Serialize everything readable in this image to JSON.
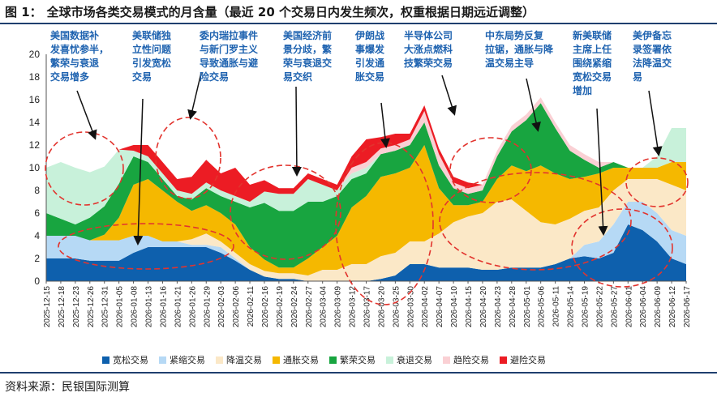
{
  "header": {
    "figure_label": "图 1：",
    "title": "全球市场各类交易模式的月含量（最近 20 个交易日内发生频次，权重根据日期远近调整）"
  },
  "source": "资料来源：民银国际测算",
  "colors": {
    "宽松交易": "#0e60ad",
    "紧缩交易": "#b6d9f5",
    "降温交易": "#fbe8c7",
    "通胀交易": "#f5b800",
    "繁荣交易": "#18a540",
    "衰退交易": "#c8f1da",
    "趋险交易": "#fad0d4",
    "避险交易": "#ec1c24",
    "annotation": "#1f63b0",
    "circle": "#e2342e"
  },
  "annotations": [
    "美国数据补\n发喜忧参半，\n繁荣与衰退\n交易增多",
    "美联储独\n立性问题\n引发宽松\n交易",
    "委内瑞拉事件\n与新门罗主义\n导致通胀与避\n险交易",
    "美国经济前\n景分歧，繁\n荣与衰退交\n易交织",
    "伊朗战\n事爆发\n引发通\n胀交易",
    "半导体公司\n大涨点燃科\n技繁荣交易",
    "中东局势反复\n拉锯，通胀与降\n温交易主导",
    "新美联储\n主席上任\n围绕紧缩\n宽松交易\n增加",
    "美伊备忘\n录签署依\n法降温交\n易"
  ],
  "chart_data": {
    "type": "area",
    "stacked": true,
    "title": "",
    "xlabel": "",
    "ylabel": "",
    "ylim": [
      0,
      20
    ],
    "yticks": [
      0,
      2,
      4,
      6,
      8,
      10,
      12,
      14,
      16,
      18,
      20
    ],
    "grid": false,
    "legend_position": "bottom",
    "x_tick_labels": [
      "2025-12-15",
      "2025-12-18",
      "2025-12-23",
      "2025-12-26",
      "2025-12-31",
      "2026-01-05",
      "2026-01-08",
      "2026-01-13",
      "2026-01-16",
      "2026-01-21",
      "2026-01-26",
      "2026-01-29",
      "2026-02-03",
      "2026-02-06",
      "2026-02-11",
      "2026-02-16",
      "2026-02-19",
      "2026-02-24",
      "2026-02-27",
      "2026-03-04",
      "2026-03-09",
      "2026-03-12",
      "2026-03-17",
      "2026-03-20",
      "2026-03-25",
      "2026-03-30",
      "2026-04-02",
      "2026-04-07",
      "2026-04-10",
      "2026-04-15",
      "2026-04-20",
      "2026-04-23",
      "2026-04-28",
      "2026-05-01",
      "2026-05-06",
      "2026-05-11",
      "2026-05-14",
      "2026-05-19",
      "2026-05-22",
      "2026-05-27",
      "2026-06-01",
      "2026-06-04",
      "2026-06-09",
      "2026-06-12",
      "2026-06-17"
    ],
    "series": [
      {
        "name": "宽松交易",
        "values": [
          2,
          2,
          2,
          1.8,
          1.8,
          1.8,
          2.5,
          3,
          3,
          3,
          3,
          3,
          2.5,
          1.8,
          1,
          0.4,
          0.2,
          0.2,
          0,
          0,
          0,
          0,
          0,
          0.2,
          0.5,
          1.5,
          1.5,
          1.2,
          1.2,
          1.2,
          1,
          1,
          1.2,
          1.2,
          1.2,
          1.5,
          2,
          2.2,
          2,
          2.5,
          5,
          4.5,
          3.5,
          2,
          1.5
        ]
      },
      {
        "name": "紧缩交易",
        "values": [
          2,
          2,
          2,
          1.8,
          1.8,
          1.8,
          1.5,
          1,
          0.5,
          0.5,
          0.2,
          0.2,
          0.5,
          0.2,
          0,
          0,
          0,
          0,
          0,
          0,
          0,
          0,
          0,
          0,
          0,
          0,
          0,
          0,
          0,
          0,
          0,
          0,
          0,
          0,
          0,
          0,
          0,
          1,
          1.5,
          2.5,
          2,
          2.5,
          2.5,
          2.5,
          2.5
        ]
      },
      {
        "name": "降温交易",
        "values": [
          0,
          0,
          0,
          0,
          0,
          0,
          0,
          0,
          0,
          0,
          0.5,
          1,
          0.5,
          0.5,
          0.5,
          0.5,
          0.5,
          0.5,
          0.5,
          1,
          1,
          1.5,
          1.5,
          2,
          2,
          2,
          2,
          3,
          4,
          4.5,
          5,
          6,
          6,
          5,
          4,
          3.5,
          3.5,
          3,
          3,
          3,
          2,
          2,
          3,
          4,
          4
        ]
      },
      {
        "name": "通胀交易",
        "values": [
          0,
          0,
          0,
          0,
          0.5,
          2,
          4.5,
          5,
          4.5,
          3.5,
          2.5,
          2.5,
          2.5,
          2.5,
          1.5,
          1,
          0.5,
          0.5,
          1.5,
          2,
          3,
          5,
          6,
          7,
          7,
          6.5,
          8.5,
          4,
          1.5,
          1,
          1,
          2,
          3,
          3.5,
          5,
          4.5,
          3.5,
          3,
          3,
          2,
          1,
          1,
          1,
          2,
          2.5
        ]
      },
      {
        "name": "繁荣交易",
        "values": [
          2,
          1.5,
          1,
          2,
          2.5,
          3,
          2.5,
          1.5,
          1,
          0.5,
          1,
          1.5,
          1.5,
          2,
          3.5,
          5,
          5,
          5,
          5,
          4,
          3.5,
          2.5,
          2,
          2,
          2,
          2,
          2,
          2,
          1.5,
          1,
          1,
          2,
          3,
          4.5,
          5.5,
          4,
          2.5,
          1.5,
          0.5,
          0.5,
          0,
          0,
          0,
          0,
          0
        ]
      },
      {
        "name": "衰退交易",
        "values": [
          4,
          5,
          5,
          4,
          3.5,
          3,
          0.5,
          0.5,
          0.5,
          0.5,
          0.5,
          0.5,
          0.5,
          0.5,
          0.5,
          1,
          1.5,
          1.5,
          2,
          1.5,
          0.5,
          0.5,
          0.5,
          0,
          0,
          0,
          0,
          0,
          0,
          0,
          0,
          0,
          0,
          0,
          0,
          0,
          0,
          0,
          0,
          0,
          0,
          0,
          1,
          3,
          3
        ]
      },
      {
        "name": "趋险交易",
        "values": [
          0,
          0,
          0,
          0,
          0,
          0,
          0,
          0,
          0,
          0,
          0,
          0,
          0,
          0,
          0,
          0,
          0,
          0,
          0,
          0,
          0,
          0.5,
          0.5,
          0.5,
          0.5,
          0.5,
          1,
          1,
          0.5,
          0.5,
          0.5,
          0.5,
          0.5,
          0.5,
          0.5,
          0.5,
          0.5,
          0.5,
          0.5,
          0,
          0,
          0,
          0,
          0,
          0
        ]
      },
      {
        "name": "避险交易",
        "values": [
          0,
          0,
          0,
          0,
          0,
          0,
          0.5,
          1,
          1,
          1,
          1.5,
          2,
          1.5,
          2.5,
          1.5,
          1,
          0.5,
          0.5,
          0.5,
          0.5,
          0.5,
          1,
          2,
          1,
          1,
          0.5,
          0.5,
          0.5,
          0.5,
          0.5,
          0,
          0,
          0,
          0,
          0,
          0,
          0,
          0,
          0,
          0,
          0,
          0,
          0,
          0,
          0
        ]
      }
    ]
  }
}
